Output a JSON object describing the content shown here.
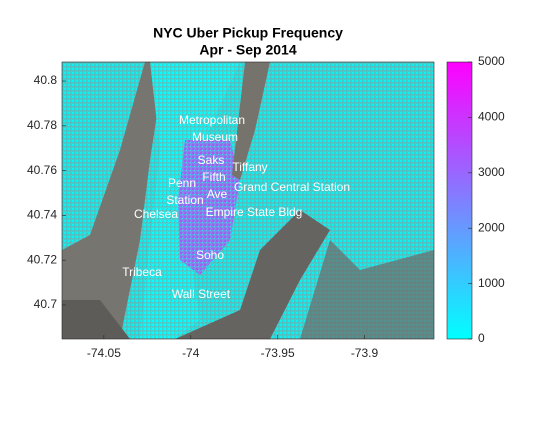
{
  "chart_data": {
    "type": "map-density",
    "title": [
      "NYC Uber Pickup Frequency",
      "Apr - Sep 2014"
    ],
    "xlim": [
      -74.0741,
      -73.86
    ],
    "xticks": [
      -74.05,
      -74,
      -73.95,
      -73.9
    ],
    "ylim": [
      40.6848,
      40.8085
    ],
    "yticks": [
      40.7,
      40.72,
      40.74,
      40.76,
      40.78,
      40.8
    ],
    "colorbar": {
      "lim": [
        0,
        5000
      ],
      "ticks": [
        0,
        1000,
        2000,
        3000,
        4000,
        5000
      ],
      "colors": [
        "#00ffff",
        "#ff00ff"
      ]
    },
    "annotations": [
      [
        "Metropolitan",
        "Museum"
      ],
      [
        "Saks",
        "Fifth",
        "Ave"
      ],
      [
        "Tiffany"
      ],
      [
        "Grand Central Station"
      ],
      [
        "Penn",
        "Station"
      ],
      [
        "Chelsea"
      ],
      [
        "Empire State Bldg"
      ],
      [
        "Soho"
      ],
      [
        "Tribeca"
      ],
      [
        "Wall Street"
      ]
    ]
  }
}
